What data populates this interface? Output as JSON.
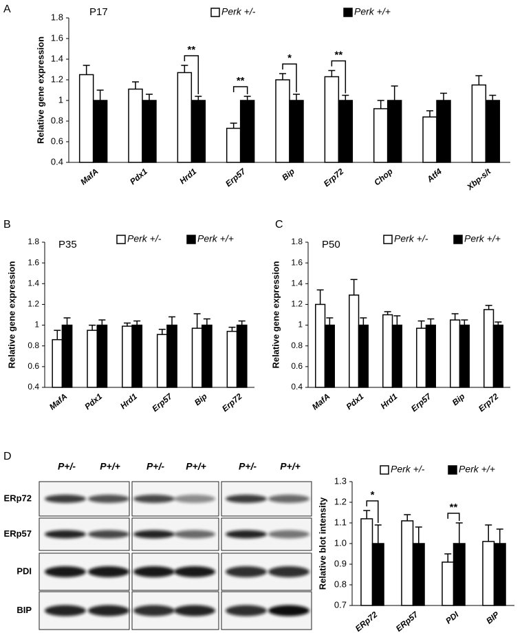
{
  "chart_data": [
    {
      "type": "bar",
      "panel": "A",
      "annotation": "P17",
      "ylabel": "Relative gene expression",
      "categories": [
        "MafA",
        "Pdx1",
        "Hrd1",
        "Erp57",
        "Bip",
        "Erp72",
        "Chop",
        "Atf4",
        "Xbp-s/t"
      ],
      "series": [
        {
          "name": "Perk +/-",
          "color": "#ffffff",
          "values": [
            1.25,
            1.11,
            1.27,
            0.73,
            1.2,
            1.23,
            0.92,
            0.84,
            1.15
          ],
          "errors": [
            0.09,
            0.07,
            0.07,
            0.05,
            0.06,
            0.06,
            0.08,
            0.06,
            0.09
          ]
        },
        {
          "name": "Perk +/+",
          "color": "#000000",
          "values": [
            1,
            1,
            1,
            1,
            1,
            1,
            1,
            1,
            1
          ],
          "errors": [
            0.1,
            0.06,
            0.04,
            0.04,
            0.06,
            0.05,
            0.14,
            0.07,
            0.05
          ]
        }
      ],
      "significance": [
        {
          "category": "Hrd1",
          "label": "**"
        },
        {
          "category": "Erp57",
          "label": "**"
        },
        {
          "category": "Bip",
          "label": "*"
        },
        {
          "category": "Erp72",
          "label": "**"
        }
      ],
      "ylim": [
        0.4,
        1.8
      ],
      "yticks": [
        0.4,
        0.6,
        0.8,
        1,
        1.2,
        1.4,
        1.6,
        1.8
      ]
    },
    {
      "type": "bar",
      "panel": "B",
      "annotation": "P35",
      "ylabel": "Relative gene expression",
      "categories": [
        "MafA",
        "Pdx1",
        "Hrd1",
        "Erp57",
        "Bip",
        "Erp72"
      ],
      "series": [
        {
          "name": "Perk +/-",
          "color": "#ffffff",
          "values": [
            0.86,
            0.95,
            0.99,
            0.91,
            0.97,
            0.94
          ],
          "errors": [
            0.09,
            0.05,
            0.03,
            0.05,
            0.14,
            0.04
          ]
        },
        {
          "name": "Perk +/+",
          "color": "#000000",
          "values": [
            1,
            1,
            1,
            1,
            1,
            1
          ],
          "errors": [
            0.07,
            0.05,
            0.04,
            0.08,
            0.06,
            0.04
          ]
        }
      ],
      "ylim": [
        0.4,
        1.8
      ],
      "yticks": [
        0.4,
        0.6,
        0.8,
        1,
        1.2,
        1.4,
        1.6,
        1.8
      ]
    },
    {
      "type": "bar",
      "panel": "C",
      "annotation": "P50",
      "ylabel": "Relative gene expression",
      "categories": [
        "MafA",
        "Pdx1",
        "Hrd1",
        "Erp57",
        "Bip",
        "Erp72"
      ],
      "series": [
        {
          "name": "Perk +/-",
          "color": "#ffffff",
          "values": [
            1.2,
            1.29,
            1.1,
            0.97,
            1.05,
            1.15
          ],
          "errors": [
            0.14,
            0.15,
            0.03,
            0.07,
            0.06,
            0.04
          ]
        },
        {
          "name": "Perk +/+",
          "color": "#000000",
          "values": [
            1,
            1,
            1,
            1,
            1,
            1
          ],
          "errors": [
            0.07,
            0.07,
            0.09,
            0.06,
            0.05,
            0.03
          ]
        }
      ],
      "ylim": [
        0.4,
        1.8
      ],
      "yticks": [
        0.4,
        0.6,
        0.8,
        1,
        1.2,
        1.4,
        1.6,
        1.8
      ]
    },
    {
      "type": "bar",
      "panel": "D",
      "ylabel": "Relative blot intensity",
      "categories": [
        "ERp72",
        "ERp57",
        "PDI",
        "BIP"
      ],
      "series": [
        {
          "name": "Perk +/-",
          "color": "#ffffff",
          "values": [
            1.12,
            1.11,
            0.91,
            1.01
          ],
          "errors": [
            0.04,
            0.03,
            0.04,
            0.08
          ]
        },
        {
          "name": "Perk +/+",
          "color": "#000000",
          "values": [
            1,
            1,
            1,
            1
          ],
          "errors": [
            0.09,
            0.08,
            0.1,
            0.07
          ]
        }
      ],
      "significance": [
        {
          "category": "ERp72",
          "label": "*"
        },
        {
          "category": "PDI",
          "label": "**"
        }
      ],
      "ylim": [
        0.7,
        1.3
      ],
      "yticks": [
        0.7,
        0.8,
        0.9,
        {
          "value": 1,
          "label": "1.0"
        },
        1.1,
        1.2,
        1.3
      ]
    }
  ],
  "blot": {
    "lanes": [
      "P+/-",
      "P+/+",
      "P+/-",
      "P+/+",
      "P+/-",
      "P+/+"
    ],
    "rows": [
      "ERp72",
      "ERp57",
      "PDI",
      "BIP"
    ]
  }
}
